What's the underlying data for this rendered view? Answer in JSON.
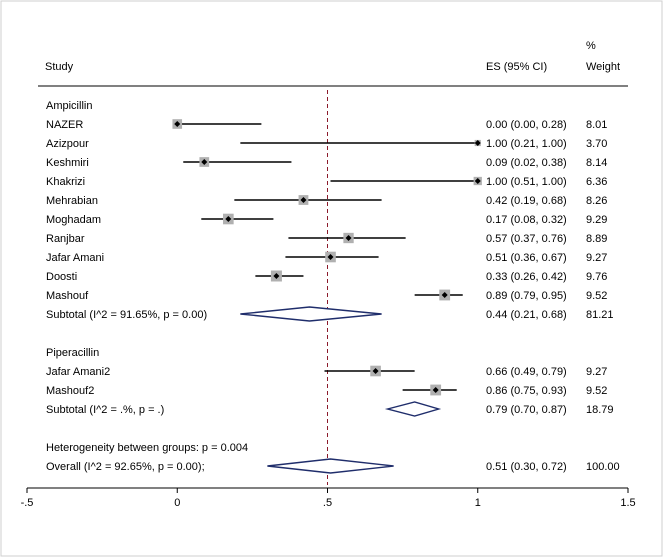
{
  "chart_data": {
    "type": "forest",
    "headers": {
      "study": "Study",
      "es": "ES (95% CI)",
      "weight_line1": "%",
      "weight_line2": "Weight"
    },
    "x_axis": {
      "range": [
        -0.5,
        1.5
      ],
      "ticks": [
        -0.5,
        0,
        0.5,
        1,
        1.5
      ],
      "tick_labels": [
        "-.5",
        "0",
        ".5",
        "1",
        "1.5"
      ]
    },
    "reference_line": 0.5,
    "groups": [
      {
        "name": "Ampicillin",
        "studies": [
          {
            "name": "NAZER",
            "es": 0.0,
            "lo": 0.0,
            "hi": 0.28,
            "label": "0.00 (0.00, 0.28)",
            "weight": "8.01"
          },
          {
            "name": "Azizpour",
            "es": 1.0,
            "lo": 0.21,
            "hi": 1.0,
            "label": "1.00 (0.21, 1.00)",
            "weight": "3.70"
          },
          {
            "name": "Keshmiri",
            "es": 0.09,
            "lo": 0.02,
            "hi": 0.38,
            "label": "0.09 (0.02, 0.38)",
            "weight": "8.14"
          },
          {
            "name": "Khakrizi",
            "es": 1.0,
            "lo": 0.51,
            "hi": 1.0,
            "label": "1.00 (0.51, 1.00)",
            "weight": "6.36"
          },
          {
            "name": "Mehrabian",
            "es": 0.42,
            "lo": 0.19,
            "hi": 0.68,
            "label": "0.42 (0.19, 0.68)",
            "weight": "8.26"
          },
          {
            "name": "Moghadam",
            "es": 0.17,
            "lo": 0.08,
            "hi": 0.32,
            "label": "0.17 (0.08, 0.32)",
            "weight": "9.29"
          },
          {
            "name": "Ranjbar",
            "es": 0.57,
            "lo": 0.37,
            "hi": 0.76,
            "label": "0.57 (0.37, 0.76)",
            "weight": "8.89"
          },
          {
            "name": "Jafar Amani",
            "es": 0.51,
            "lo": 0.36,
            "hi": 0.67,
            "label": "0.51 (0.36, 0.67)",
            "weight": "9.27"
          },
          {
            "name": "Doosti",
            "es": 0.33,
            "lo": 0.26,
            "hi": 0.42,
            "label": "0.33 (0.26, 0.42)",
            "weight": "9.76"
          },
          {
            "name": "Mashouf",
            "es": 0.89,
            "lo": 0.79,
            "hi": 0.95,
            "label": "0.89 (0.79, 0.95)",
            "weight": "9.52"
          }
        ],
        "subtotal": {
          "name": "Subtotal  (I^2 = 91.65%, p = 0.00)",
          "es": 0.44,
          "lo": 0.21,
          "hi": 0.68,
          "label": "0.44 (0.21, 0.68)",
          "weight": "81.21"
        }
      },
      {
        "name": "Piperacillin",
        "studies": [
          {
            "name": "Jafar Amani2",
            "es": 0.66,
            "lo": 0.49,
            "hi": 0.79,
            "label": "0.66 (0.49, 0.79)",
            "weight": "9.27"
          },
          {
            "name": "Mashouf2",
            "es": 0.86,
            "lo": 0.75,
            "hi": 0.93,
            "label": "0.86 (0.75, 0.93)",
            "weight": "9.52"
          }
        ],
        "subtotal": {
          "name": "Subtotal  (I^2 = .%, p = .)",
          "es": 0.79,
          "lo": 0.7,
          "hi": 0.87,
          "label": "0.79 (0.70, 0.87)",
          "weight": "18.79"
        }
      }
    ],
    "heterogeneity": "Heterogeneity between groups: p = 0.004",
    "overall": {
      "name": "Overall  (I^2 = 92.65%, p = 0.00);",
      "es": 0.51,
      "lo": 0.3,
      "hi": 0.72,
      "label": "0.51 (0.30, 0.72)",
      "weight": "100.00"
    },
    "colors": {
      "diamond": "#1f2d6b",
      "reference": "#8b1a2b",
      "box": "#b0b0b0",
      "axis": "#000000"
    }
  }
}
